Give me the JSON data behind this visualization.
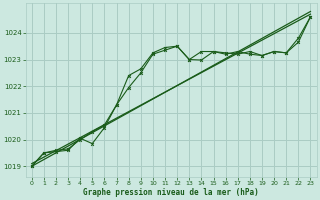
{
  "title": "Graphe pression niveau de la mer (hPa)",
  "bg_color": "#cce8e0",
  "grid_color": "#aaccc4",
  "line_color": "#1a5c1a",
  "xlim": [
    -0.5,
    23.5
  ],
  "ylim": [
    1018.6,
    1025.1
  ],
  "yticks": [
    1019,
    1020,
    1021,
    1022,
    1023,
    1024
  ],
  "xticks": [
    0,
    1,
    2,
    3,
    4,
    5,
    6,
    7,
    8,
    9,
    10,
    11,
    12,
    13,
    14,
    15,
    16,
    17,
    18,
    19,
    20,
    21,
    22,
    23
  ],
  "series_trend_x": [
    0,
    23
  ],
  "series_trend_y": [
    1019.0,
    1024.8
  ],
  "series_trend2_x": [
    0,
    23
  ],
  "series_trend2_y": [
    1019.1,
    1024.7
  ],
  "series_wavy_x": [
    0,
    1,
    2,
    3,
    4,
    5,
    6,
    7,
    8,
    9,
    10,
    11,
    12,
    13,
    14,
    15,
    16,
    17,
    18,
    19,
    20,
    21,
    22,
    23
  ],
  "series_wavy_y": [
    1019.0,
    1019.5,
    1019.6,
    1019.65,
    1020.0,
    1020.3,
    1020.55,
    1021.3,
    1021.95,
    1022.5,
    1023.2,
    1023.35,
    1023.5,
    1023.0,
    1023.3,
    1023.3,
    1023.2,
    1023.3,
    1023.2,
    1023.15,
    1023.3,
    1023.25,
    1023.8,
    1024.6
  ],
  "series_peaked_x": [
    0,
    1,
    2,
    3,
    4,
    5,
    6,
    7,
    8,
    9,
    10,
    11,
    12,
    13,
    14,
    15,
    16,
    17,
    18,
    19,
    20,
    21,
    22,
    23
  ],
  "series_peaked_y": [
    1019.0,
    1019.5,
    1019.55,
    1019.6,
    1020.05,
    1019.85,
    1020.45,
    1021.3,
    1022.4,
    1022.65,
    1023.25,
    1023.45,
    1023.5,
    1023.0,
    1022.98,
    1023.3,
    1023.25,
    1023.2,
    1023.3,
    1023.15,
    1023.3,
    1023.25,
    1023.65,
    1024.6
  ]
}
